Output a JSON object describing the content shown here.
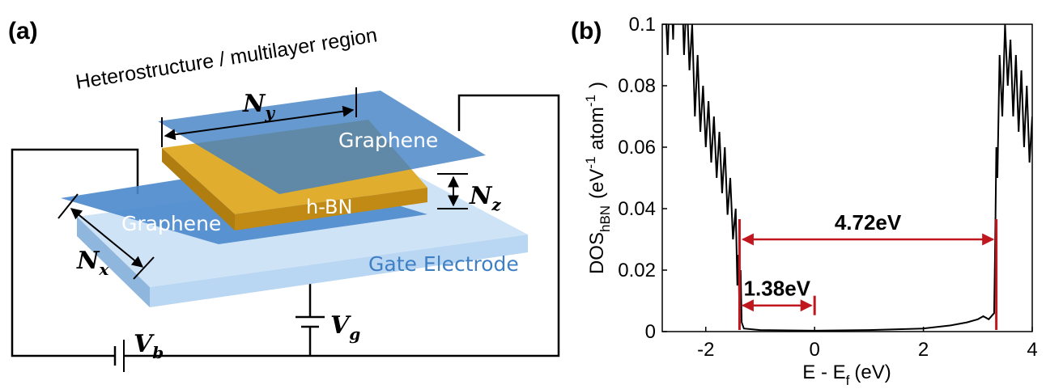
{
  "diagram": {
    "label": "(a)",
    "title": "Heterostructure / multilayer region",
    "ny": {
      "symbol": "N",
      "sub": "y"
    },
    "nz": {
      "symbol": "N",
      "sub": "z"
    },
    "nx": {
      "symbol": "N",
      "sub": "x"
    },
    "top_layer": "Graphene",
    "bottom_layer": "Graphene",
    "middle_layer": "h-BN",
    "substrate": "Gate Electrode",
    "vb": {
      "symbol": "V",
      "sub": "b"
    },
    "vg": {
      "symbol": "V",
      "sub": "g"
    }
  },
  "chart_data": {
    "type": "line",
    "label": "(b)",
    "ylabel": {
      "main": "DOS",
      "sub": "hBN",
      "unit1": "(eV",
      "exp1": "-1",
      "unit2": "atom",
      "exp2": "-1",
      "close": ")"
    },
    "xlabel": {
      "main": "E - E",
      "sub": "f",
      "unit": "(eV)"
    },
    "color": "#000000",
    "x": [
      -2.8,
      -2.75,
      -2.7,
      -2.65,
      -2.6,
      -2.55,
      -2.5,
      -2.45,
      -2.4,
      -2.35,
      -2.3,
      -2.25,
      -2.2,
      -2.15,
      -2.1,
      -2.05,
      -2.0,
      -1.95,
      -1.9,
      -1.85,
      -1.8,
      -1.75,
      -1.7,
      -1.65,
      -1.6,
      -1.55,
      -1.5,
      -1.45,
      -1.42,
      -1.4,
      -1.38,
      -1.36,
      -1.34,
      -1.3,
      -1.0,
      0,
      1.0,
      2.0,
      2.5,
      2.8,
      3.0,
      3.1,
      3.2,
      3.3,
      3.32,
      3.34,
      3.36,
      3.4,
      3.45,
      3.5,
      3.55,
      3.6,
      3.65,
      3.7,
      3.75,
      3.8,
      3.85,
      3.9,
      3.95,
      4.0
    ],
    "values": [
      0.13,
      0.11,
      0.09,
      0.12,
      0.095,
      0.13,
      0.1,
      0.12,
      0.09,
      0.11,
      0.085,
      0.1,
      0.07,
      0.09,
      0.065,
      0.08,
      0.06,
      0.075,
      0.055,
      0.07,
      0.05,
      0.065,
      0.045,
      0.06,
      0.038,
      0.05,
      0.03,
      0.04,
      0.015,
      0.025,
      0.005,
      0.02,
      0.003,
      0.001,
      0.0005,
      0.0003,
      0.0005,
      0.001,
      0.002,
      0.003,
      0.004,
      0.005,
      0.004,
      0.006,
      0.03,
      0.06,
      0.05,
      0.09,
      0.07,
      0.1,
      0.08,
      0.095,
      0.07,
      0.09,
      0.065,
      0.085,
      0.06,
      0.08,
      0.055,
      0.07
    ],
    "xlim": [
      -2.8,
      4
    ],
    "ylim": [
      0,
      0.1
    ],
    "xticks": [
      -2,
      0,
      2,
      4
    ],
    "yticks": [
      0,
      0.02,
      0.04,
      0.06,
      0.08,
      0.1
    ],
    "annotation_color": "#c0161e",
    "annotations": [
      {
        "text": "4.72eV",
        "x": [
          -1.38,
          3.34
        ],
        "y": 0.03
      },
      {
        "text": "1.38eV",
        "x": [
          -1.38,
          0
        ],
        "y": 0.0085
      }
    ]
  }
}
